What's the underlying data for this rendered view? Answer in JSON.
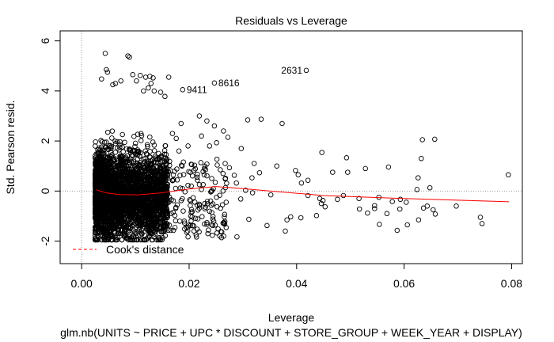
{
  "chart_data": {
    "type": "scatter",
    "title": "Residuals vs Leverage",
    "xlabel": "Leverage",
    "ylabel": "Std. Pearson resid.",
    "subtitle": "glm.nb(UNITS ~ PRICE + UPC * DISCOUNT + STORE_GROUP + WEEK_YEAR + DISPLAY)",
    "xlim": [
      -0.004,
      0.082
    ],
    "ylim": [
      -2.9,
      6.4
    ],
    "xticks": [
      0.0,
      0.02,
      0.04,
      0.06,
      0.08
    ],
    "xtick_labels": [
      "0.00",
      "0.02",
      "0.04",
      "0.06",
      "0.08"
    ],
    "yticks": [
      -2,
      0,
      2,
      4,
      6
    ],
    "ytick_labels": [
      "-2",
      "0",
      "2",
      "4",
      "6"
    ],
    "legend": {
      "label": "Cook's distance",
      "position": "bottom-left",
      "color": "#ff0000"
    },
    "reference_lines": {
      "h": 0,
      "v": 0,
      "style": "dotted",
      "color": "#999999"
    },
    "labeled_points": [
      {
        "label": "2631",
        "x": 0.0418,
        "y": 4.82
      },
      {
        "label": "8616",
        "x": 0.0247,
        "y": 4.32
      },
      {
        "label": "9411",
        "x": 0.0188,
        "y": 4.05
      }
    ],
    "points": [
      [
        0.0309,
        2.84
      ],
      [
        0.0334,
        2.87
      ],
      [
        0.0373,
        2.7
      ],
      [
        0.0297,
        1.7
      ],
      [
        0.0251,
        1.93
      ],
      [
        0.0238,
        1.8
      ],
      [
        0.0219,
        3.0
      ],
      [
        0.0233,
        2.8
      ],
      [
        0.0247,
        2.6
      ],
      [
        0.0223,
        2.2
      ],
      [
        0.0264,
        2.4
      ],
      [
        0.0272,
        2.15
      ],
      [
        0.0321,
        1.1
      ],
      [
        0.0363,
        1.0
      ],
      [
        0.0398,
        0.82
      ],
      [
        0.0403,
        0.65
      ],
      [
        0.0421,
        0.43
      ],
      [
        0.0331,
        0.73
      ],
      [
        0.0317,
        0.53
      ],
      [
        0.0275,
        0.93
      ],
      [
        0.0284,
        0.63
      ],
      [
        0.0288,
        0.32
      ],
      [
        0.0305,
        0.03
      ],
      [
        0.0352,
        -0.15
      ],
      [
        0.0318,
        -0.07
      ],
      [
        0.0296,
        -0.32
      ],
      [
        0.0269,
        -0.45
      ],
      [
        0.0252,
        -0.63
      ],
      [
        0.0238,
        -0.81
      ],
      [
        0.0224,
        -1.02
      ],
      [
        0.0233,
        -1.33
      ],
      [
        0.0236,
        -1.56
      ],
      [
        0.0257,
        -1.8
      ],
      [
        0.0289,
        -1.83
      ],
      [
        0.0311,
        -1.13
      ],
      [
        0.0345,
        -1.38
      ],
      [
        0.0379,
        -1.6
      ],
      [
        0.0382,
        -1.15
      ],
      [
        0.0389,
        -1.03
      ],
      [
        0.0408,
        -1.07
      ],
      [
        0.0437,
        -0.98
      ],
      [
        0.0421,
        -0.18
      ],
      [
        0.0443,
        -0.3
      ],
      [
        0.0449,
        -0.38
      ],
      [
        0.0446,
        -0.5
      ],
      [
        0.0453,
        -0.63
      ],
      [
        0.0447,
        1.54
      ],
      [
        0.0409,
        0.32
      ],
      [
        0.0493,
        1.33
      ],
      [
        0.0495,
        0.75
      ],
      [
        0.0528,
        0.9
      ],
      [
        0.0545,
        -0.58
      ],
      [
        0.0545,
        -0.7
      ],
      [
        0.0532,
        -0.88
      ],
      [
        0.0517,
        -0.72
      ],
      [
        0.0568,
        -0.9
      ],
      [
        0.0554,
        -1.33
      ],
      [
        0.0587,
        -1.57
      ],
      [
        0.0593,
        -0.33
      ],
      [
        0.0606,
        -1.35
      ],
      [
        0.0627,
        -1.15
      ],
      [
        0.0636,
        -0.68
      ],
      [
        0.0643,
        -0.6
      ],
      [
        0.0654,
        -0.75
      ],
      [
        0.0658,
        -0.92
      ],
      [
        0.0626,
        0.53
      ],
      [
        0.0624,
        0.06
      ],
      [
        0.0632,
        1.3
      ],
      [
        0.0634,
        2.05
      ],
      [
        0.0657,
        2.07
      ],
      [
        0.0648,
        0.13
      ],
      [
        0.0571,
        0.96
      ],
      [
        0.0578,
        -0.42
      ],
      [
        0.0467,
        0.75
      ],
      [
        0.0476,
        -0.33
      ],
      [
        0.0592,
        -0.72
      ],
      [
        0.0697,
        -0.6
      ],
      [
        0.0742,
        -1.05
      ],
      [
        0.0745,
        -1.3
      ],
      [
        0.0794,
        0.65
      ],
      [
        0.0604,
        -0.45
      ],
      [
        0.0487,
        -0.18
      ],
      [
        0.0516,
        -0.3
      ],
      [
        0.0553,
        -0.25
      ],
      [
        0.0251,
        -0.25
      ],
      [
        0.0262,
        -0.55
      ],
      [
        0.0244,
        -1.12
      ],
      [
        0.0226,
        0.78
      ],
      [
        0.0215,
        0.55
      ],
      [
        0.0209,
        -1.6
      ],
      [
        0.0213,
        -1.75
      ],
      [
        0.0198,
        -1.83
      ],
      [
        0.0191,
        -1.2
      ],
      [
        0.0187,
        1.0
      ],
      [
        0.0181,
        1.6
      ],
      [
        0.0176,
        2.1
      ],
      [
        0.0169,
        2.3
      ],
      [
        0.0185,
        2.7
      ],
      [
        0.0171,
        0.45
      ],
      [
        0.0178,
        -0.55
      ],
      [
        0.0189,
        -0.8
      ],
      [
        0.0198,
        1.8
      ],
      [
        0.0204,
        0.2
      ],
      [
        0.0263,
        0.0
      ],
      [
        0.0229,
        -0.5
      ],
      [
        0.0267,
        1.1
      ],
      [
        0.0258,
        0.85
      ],
      [
        0.0242,
        0.5
      ],
      [
        0.0195,
        -1.45
      ],
      [
        0.0201,
        -0.35
      ],
      [
        0.0242,
        -1.35
      ],
      [
        0.0235,
        -1.7
      ],
      [
        0.0044,
        5.5
      ],
      [
        0.0046,
        4.85
      ],
      [
        0.0048,
        4.75
      ],
      [
        0.0037,
        4.48
      ],
      [
        0.0086,
        5.4
      ],
      [
        0.0089,
        5.35
      ],
      [
        0.0109,
        4.62
      ],
      [
        0.0119,
        4.55
      ],
      [
        0.0127,
        4.58
      ],
      [
        0.0133,
        4.52
      ],
      [
        0.0129,
        4.3
      ],
      [
        0.0073,
        4.4
      ],
      [
        0.0095,
        4.65
      ],
      [
        0.0102,
        4.4
      ],
      [
        0.0063,
        4.3
      ],
      [
        0.0058,
        4.25
      ],
      [
        0.0162,
        4.55
      ],
      [
        0.0135,
        4.0
      ],
      [
        0.0147,
        3.95
      ],
      [
        0.0155,
        3.78
      ],
      [
        0.0115,
        4.0
      ],
      [
        0.0124,
        4.12
      ]
    ]
  }
}
